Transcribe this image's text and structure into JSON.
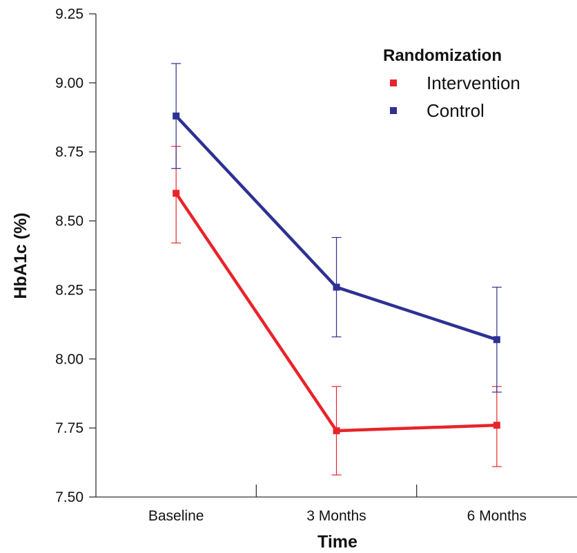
{
  "chart_data": {
    "type": "line",
    "title": "",
    "xlabel": "Time",
    "ylabel": "HbA1c (%)",
    "categories": [
      "Baseline",
      "3 Months",
      "6 Months"
    ],
    "ylim": [
      7.5,
      9.25
    ],
    "yticks": [
      "7.50",
      "7.75",
      "8.00",
      "8.25",
      "8.50",
      "8.75",
      "9.00",
      "9.25"
    ],
    "grid": false,
    "legend": {
      "title": "Randomization",
      "placement": "top-right"
    },
    "series": [
      {
        "name": "Intervention",
        "color": "#e8242a",
        "values": [
          8.6,
          7.74,
          7.76
        ],
        "error_low": [
          8.42,
          7.58,
          7.61
        ],
        "error_high": [
          8.77,
          7.9,
          7.9
        ]
      },
      {
        "name": "Control",
        "color": "#2e3192",
        "values": [
          8.88,
          8.26,
          8.07
        ],
        "error_low": [
          8.69,
          8.08,
          7.88
        ],
        "error_high": [
          9.07,
          8.44,
          8.26
        ]
      }
    ]
  }
}
